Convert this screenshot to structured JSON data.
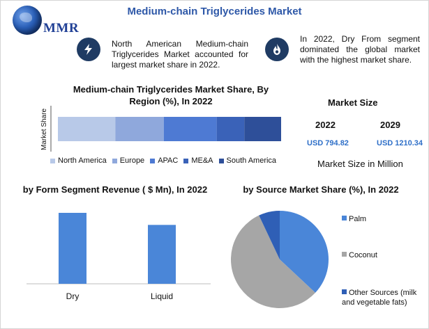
{
  "header": {
    "title": "Medium-chain Triglycerides Market",
    "logo_text": "MMR"
  },
  "info": [
    {
      "icon": "lightning-icon",
      "text": "North American Medium-chain Triglycerides Market accounted for largest market share in 2022."
    },
    {
      "icon": "flame-icon",
      "text": "In 2022, Dry From segment dominated the global market with the highest market share."
    }
  ],
  "market_size": {
    "heading": "Market Size",
    "years": [
      "2022",
      "2029"
    ],
    "values": [
      "USD 794.82",
      "USD 1210.34"
    ],
    "footer": "Market Size in Million"
  },
  "colors": {
    "title_blue": "#2e58a8",
    "value_blue": "#2e6fc8",
    "icon_navy": "#1f3b63",
    "palm": "#4a86d8",
    "coconut": "#a6a6a6",
    "other": "#2f5fb6"
  },
  "chart_data": [
    {
      "type": "bar",
      "orientation": "horizontal-stacked",
      "title": "Medium-chain Triglycerides Market Share, By Region (%), In 2022",
      "ylabel": "Market Share",
      "categories": [
        "North America",
        "Europe",
        "APAC",
        "ME&A",
        "South America"
      ],
      "values": [
        25,
        21,
        23,
        12,
        16
      ],
      "colors": [
        "#b8c9e8",
        "#8fa8dc",
        "#4e7ad3",
        "#3a62b8",
        "#2e4f99"
      ]
    },
    {
      "type": "bar",
      "title": "by Form Segment Revenue ( $ Mn), In 2022",
      "categories": [
        "Dry",
        "Liquid"
      ],
      "values": [
        100,
        83
      ],
      "color": "#4a86d8"
    },
    {
      "type": "pie",
      "title": "by Source  Market Share (%), In 2022",
      "categories": [
        "Palm",
        "Coconut",
        "Other Sources (milk and vegetable fats)"
      ],
      "values": [
        37,
        56,
        7
      ],
      "colors": [
        "#4a86d8",
        "#a6a6a6",
        "#2f5fb6"
      ]
    }
  ]
}
